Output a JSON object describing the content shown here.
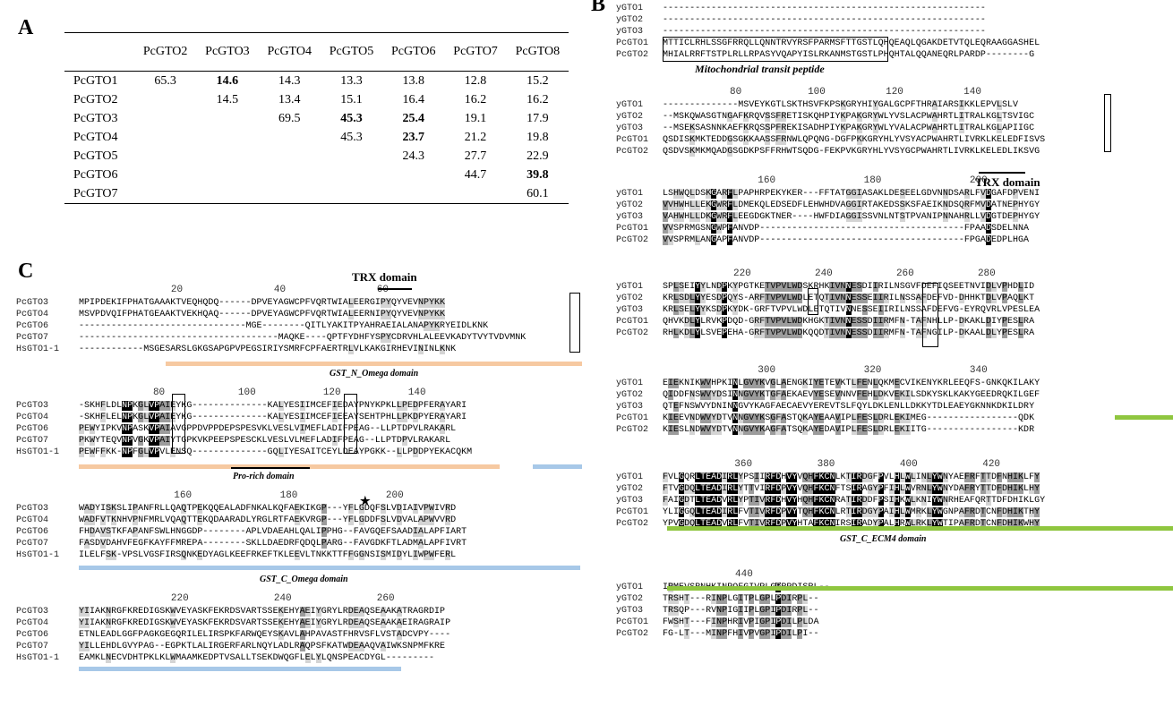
{
  "panels": {
    "A": "A",
    "B": "B",
    "C": "C"
  },
  "table": {
    "headers": [
      "",
      "PcGTO2",
      "PcGTO3",
      "PcGTO4",
      "PcGTO5",
      "PcGTO6",
      "PcGTO7",
      "PcGTO8"
    ],
    "rows": [
      [
        "PcGTO1",
        "65.3",
        "14.6",
        "14.3",
        "13.3",
        "13.8",
        "12.8",
        "15.2"
      ],
      [
        "PcGTO2",
        "",
        "14.5",
        "13.4",
        "15.1",
        "16.4",
        "16.2",
        "16.2"
      ],
      [
        "PcGTO3",
        "",
        "",
        "69.5",
        "45.3",
        "25.4",
        "19.1",
        "17.9"
      ],
      [
        "PcGTO4",
        "",
        "",
        "",
        "45.3",
        "23.7",
        "21.2",
        "19.8"
      ],
      [
        "PcGTO5",
        "",
        "",
        "",
        "",
        "24.3",
        "27.7",
        "22.9"
      ],
      [
        "PcGTO6",
        "",
        "",
        "",
        "",
        "",
        "44.7",
        "39.8"
      ],
      [
        "PcGTO7",
        "",
        "",
        "",
        "",
        "",
        "",
        "60.1"
      ]
    ],
    "bold": [
      [
        0,
        1
      ],
      [
        2,
        3
      ],
      [
        2,
        4
      ],
      [
        3,
        4
      ],
      [
        5,
        6
      ],
      [
        5,
        7
      ],
      [
        6,
        7
      ]
    ]
  },
  "panelB": {
    "blocks": [
      {
        "nums": [],
        "rows": [
          [
            "yGTO1",
            "------------------------------------------------------------"
          ],
          [
            "yGTO2",
            "------------------------------------------------------------"
          ],
          [
            "yGTO3",
            "------------------------------------------------------------"
          ],
          [
            "PcGTO1",
            "MTTICLRHLSSGFRRQLLQNNTRVYRSFPARMSFTTGSTLQHQEAQLQGAKDETVTQLEQRAAGGASHEL"
          ],
          [
            "PcGTO2",
            "MHIALRRFTSTPLRLLRPASYVQAPYISLRKANMSTGSTLPHQHTALQQANEQRLPARDP--------G"
          ]
        ]
      },
      {
        "nums": [
          "80",
          "100",
          "120",
          "140"
        ],
        "rows": [
          [
            "yGTO1",
            "--------------MSVEYKGTLSKTHSVFKPSKGRYHIYGALGCPFTHRAIARSIKKLEPVLSLV"
          ],
          [
            "yGTO2",
            "--MSKQWASGTNGAFKRQVSSFRETISKQHPIYKPAKGRYWLYVSLACPWAHRTLITRALKGLTSVIGC"
          ],
          [
            "yGTO3",
            "--MSEKSASNNKAEFKRQSSPFREKISADHPIYKPAKGRYWLYVALACPWAHRTLITRALKGLAPIIGC"
          ],
          [
            "PcGTO1",
            "QSDISKMKTEDDGSGKKAASSFRNWLQPQNG-DGFPKKGRYHLYVSYACPWAHRTLIVRKLKELEDFISVS"
          ],
          [
            "PcGTO2",
            "QSDVSKMKMQADGSGDKPSFFRHWTSQDG-FEKPVKGRYHLYVSYGCPWAHRTLIVRKLKELEDLIKSVG"
          ]
        ]
      },
      {
        "nums": [
          "160",
          "180",
          "200"
        ],
        "rows": [
          [
            "yGTO1",
            "LSHWQLDSKGARFLPAPHRPEKYKER---FFTATGGIASAKLDESEELGDVNNDSARLFVDGAFDPVENI"
          ],
          [
            "yGTO2",
            "VVHWHLLEKGWRFLDMEKQLEDSEDFLEHWHDVAGGIRTAKEDSSKSFAEIKNDSQRFMVDATNEPHYGY"
          ],
          [
            "yGTO3",
            "VAHWHLLDKGWRFLEEGDGKTNER----HWFDIAGGISSVNLNTSTPVANIPNNAHRLLVDGTDEPHYGY"
          ],
          [
            "PcGTO1",
            "VVSPRMGSNGWPFANVDP--------------------------------------FPAADSDELNNA"
          ],
          [
            "PcGTO2",
            "VVSPRMLANGAPFANVDP--------------------------------------FPGADEDPLHGA"
          ]
        ]
      },
      {
        "nums": [
          "220",
          "240",
          "260",
          "280"
        ],
        "rows": [
          [
            "yGTO1",
            "SPLSEIYYLNDPKYPGTKETVPVLWDSKRHKIVNNESDIIRILNSGVFDEFIQSEETNVIDLVPHDLID"
          ],
          [
            "yGTO2",
            "KRLSDLYYESDPQYS-ARFTVPVLWDLETQTIVNNESSEIIRILNSSAFDEFVD-DHHKTDLVPAQLKT"
          ],
          [
            "yGTO3",
            "KRLSELYYKSDPKYDK-GRFTVPVLWDLETQTIVNNESSEIIRILNSSAFDEFVG-EYRQVRLVPESLEA"
          ],
          [
            "PcGTO1",
            "QHVKDLYLRVKPDQD-GRFTVPVLWDKHGKTIVNNESSDIIRMFN-TAFNHLLP-DKAKLDIYPESLRA"
          ],
          [
            "PcGTO2",
            "RHLKDLYLSVEPEHA-GRFTVPVLWDKQQDTIVNNESSDIIRMFN-TAFNGILP-DKAALDLYPESLRA"
          ]
        ]
      },
      {
        "nums": [
          "300",
          "320",
          "340"
        ],
        "rows": [
          [
            "yGTO1",
            "EIEKNIKWVHPKINLGVYKVGLAENGKIYETEVKTLFENLQKMECVIKENYKRLEEQFS-GNKQKILAKY"
          ],
          [
            "yGTO2",
            "QIDDFNSWVYDSINNGVYKTGFAEKAEVYESEVNNVFEHLDKVEKILSDKYSKLKAKYGEEDRQKILGEF"
          ],
          [
            "yGTO3",
            "QTEFNSWVYDNINNGVYKAGFAECAEVYEREVTSLFQYLDKLENLLDKKYTDLEAEYGKNNKDKILDRY"
          ],
          [
            "PcGTO1",
            "KIEEVNDWVYDTVNNGVYKSGFASTQKAYEAAVIPLFESLDRLEKIMEG-----------------QDK"
          ],
          [
            "PcGTO2",
            "KIESLNDWVYDTVNNGVYKAGFATSQKAYEDAVIPLFESLDRLEKIITG-----------------KDR"
          ]
        ]
      },
      {
        "nums": [
          "360",
          "380",
          "400",
          "420"
        ],
        "rows": [
          [
            "yGTO1",
            "FVLGQRLTEADIRLYPSIIRFDHVYVQHFKCNLKTIRDGFPVLHLWLINLYWNYAEFRFTTDFNHIKLFY"
          ],
          [
            "yGTO2",
            "FTVGDQLTEADIRLYTTVIRFDPVYVQHFKCNFTSIRAGYPFIHLWVRNLYWNYDAFRYTTDFDHIKLHY"
          ],
          [
            "yGTO3",
            "FAIGDTLTEADVRLYPTIVRFDHVYHQHFKCNRATIRDDFPSIHKWLKNIYWNRHEAFQRTTDFDHIKLGY"
          ],
          [
            "PcGTO1",
            "YLIGGQLTEADIRLFVTIVRFDPVYTQHFKCNLRTIRDGYPAIHLWMRKLYWGNPAFRDTCNFDHIKTHY"
          ],
          [
            "PcGTO2",
            "YPVGDQLTEADVRLFVTIVRFDPVYHTAFKCNIRSIRADYPALHRWLRKLYWTIPAFRDTCNFDHIKWHY"
          ]
        ]
      },
      {
        "nums": [
          "440"
        ],
        "rows": [
          [
            "yGTO1",
            "IRMEVSRNHKINPQFGIVPLGPRPDISRL--"
          ],
          [
            "yGTO2",
            "TRSHT---RINPLGITPLGPLPDIRPL--"
          ],
          [
            "yGTO3",
            "TRSQP---RVNPIGIIPLGPIPDIRPL--"
          ],
          [
            "PcGTO1",
            "FWSHT---FINPHRIVPIGPIPDILPLDA"
          ],
          [
            "PcGTO2",
            "FG-LT---MINPFHIVPVGPIPDILPI--"
          ]
        ]
      }
    ],
    "mito_label": "Mitochondrial transit peptide",
    "trx_label": "TRX domain",
    "ecm4_label": "GST_C_ECM4 domain"
  },
  "panelC": {
    "blocks": [
      {
        "nums": [
          "20",
          "40",
          "60"
        ],
        "rows": [
          [
            "PcGTO3",
            "MPIPDEKIFPHATGAAAKTVEQHQDQ------DPVEYAGWCPFVQRTWIALEERGIPYQYVEVNPYKK"
          ],
          [
            "PcGTO4",
            "MSVPDVQIFPHATGEAAKTVEKHQAQ------DPVEYAGWCPFVQRTWIALEERNIPYQYVEVNPYKK"
          ],
          [
            "PcGTO6",
            "-------------------------------MGE--------QITLYAKITPYAHRAEIALANAPYKRYEIDLKNK"
          ],
          [
            "PcGTO7",
            "-------------------------------------MAQKE----QPTFYDHFYSPYCDRVHLALEEVKADYTVYTVDVMNK"
          ],
          [
            "HsGTO1-1",
            "------------MSGESARSLGKGSAPGPVPEGSIRIYSMRFCPFAERTRLVLKAKGIRHEVININLKNK"
          ]
        ]
      },
      {
        "nums": [
          "80",
          "100",
          "120",
          "140"
        ],
        "rows": [
          [
            "PcGTO3",
            "-SKHFLDLNPKGLVPAIEYKG--------------KALYESIIMCEFIEDAYPNYKPKLLPEDPFERAYARI"
          ],
          [
            "PcGTO4",
            "-SKHFLELNPKGLVPAIEYKG--------------KALYESIIMCEFIEEAYSEHTPHLLPKDPYERAYARI"
          ],
          [
            "PcGTO6",
            "PEWYIPKVNPASKVPAIAVGPPDVPPDEPSPESVKLVESLVIMEFLADIFPEAG--LLPTDPVLRAKARL"
          ],
          [
            "PcGTO7",
            "PKWYTEQVNPVGKVPAIYTGPKVKPEEPSPESCKLVESLVLMEFLADIFPEAG--LLPTDPVLRAKARL"
          ],
          [
            "HsGTO1-1",
            "PEWFFKK-NPFGLVPVLENSQ--------------GQLIYESAITCEYLDEAYPGKK--LLPDDPYEKACQKM"
          ]
        ]
      },
      {
        "nums": [
          "160",
          "180",
          "200"
        ],
        "rows": [
          [
            "PcGTO3",
            "WADYISKSLIPANFRLLQAQTPEKQQEALADFNKALKQFAEKIKGP---YFLGDQFSLVDIAIVPWIVRD"
          ],
          [
            "PcGTO4",
            "WADFVTKNHVPNFMRLVQAQTTEKQDAARADLYRGLRTFAEKVRGP---YFLGDDFSLVDVALAPWVVRD"
          ],
          [
            "PcGTO6",
            "FHDAVSTKFAPANFSWLHNGGDP--------APLVDAEAHLQALIPPHG--FAVGQEFSAADIALAPFIART"
          ],
          [
            "PcGTO7",
            "FASDVDAHVFEGFKAYFFMREPA--------SKLLDAEDRFQDQLPARG--FAVGDKFTLADMALAPFIVRT"
          ],
          [
            "HsGTO1-1",
            "ILELFSK-VPSLVGSFIRSQNKEDYAGLKEEFRKEFTKLEEVLTNKKTTFFGGNSISMIDYLIWPWFERL"
          ]
        ]
      },
      {
        "nums": [
          "220",
          "240",
          "260"
        ],
        "rows": [
          [
            "PcGTO3",
            "YIIAKNRGFKREDIGSKWVEYASKFEKRDSVARTSSEKEHYAEIYGRYLRDEAQSEAAKATRAGRDIP"
          ],
          [
            "PcGTO4",
            "YIIAKNRGFKREDIGSKWVEYASKFEKRDSVARTSSEKEHYAEIYGRYLRDEAQSEAAKAEIRAGRAIP"
          ],
          [
            "PcGTO6",
            "ETNLEADLGGFPAGKGEGQRILELIRSPKFARWQEYSKAVLAHPAVASTFHRVSFLVSTADCVPY----"
          ],
          [
            "PcGTO7",
            "YILLEHDLGVYPAG--EGPKTLALIRGERFARLNQYLADLRAQPSFKATWDEAAQVAIWKSNPMFKRE"
          ],
          [
            "HsGTO1-1",
            "EAMKLNECVDHTPKLKLWMAAMKEDPTVSALLTSEKDWQGFLELYLQNSPEACDYGL---------"
          ]
        ]
      }
    ],
    "trx_label": "TRX domain",
    "gstn_label": "GST_N_Omega domain",
    "prorich_label": "Pro-rich domain",
    "gstc_label": "GST_C_Omega domain",
    "star": "★"
  },
  "colors": {
    "orange": "#f6c9a1",
    "blue": "#a7c8e8",
    "green": "#8fc63f",
    "black": "#000000",
    "dark": "#9c9c9c",
    "light": "#d4d4d4"
  }
}
